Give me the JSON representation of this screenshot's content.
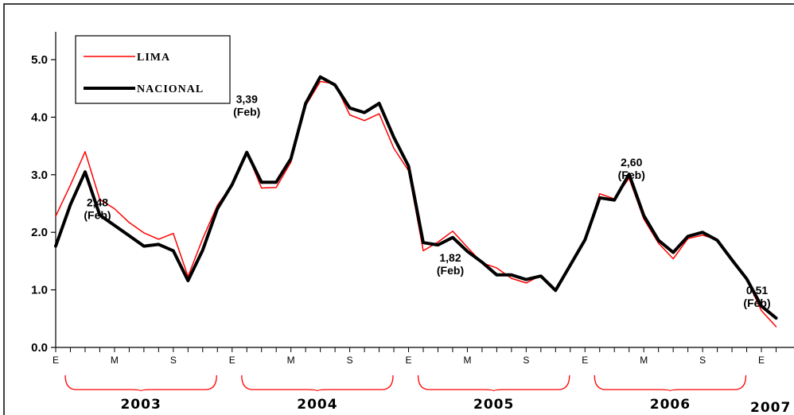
{
  "chart_data": {
    "type": "line",
    "title": "",
    "xlabel": "",
    "ylabel": "",
    "ylim": [
      0,
      5.5
    ],
    "yticks": [
      "0.0",
      "1.0",
      "2.0",
      "3.0",
      "4.0",
      "5.0"
    ],
    "grid": false,
    "legend_position": "top-left",
    "x_month_labels": [
      "E",
      "M",
      "S",
      "E",
      "M",
      "S",
      "E",
      "M",
      "S",
      "E",
      "M",
      "S",
      "E"
    ],
    "year_labels": [
      "2003",
      "2004",
      "2005",
      "2006",
      "2007"
    ],
    "x": [
      "2003-01",
      "2003-02",
      "2003-03",
      "2003-04",
      "2003-05",
      "2003-06",
      "2003-07",
      "2003-08",
      "2003-09",
      "2003-10",
      "2003-11",
      "2003-12",
      "2004-01",
      "2004-02",
      "2004-03",
      "2004-04",
      "2004-05",
      "2004-06",
      "2004-07",
      "2004-08",
      "2004-09",
      "2004-10",
      "2004-11",
      "2004-12",
      "2005-01",
      "2005-02",
      "2005-03",
      "2005-04",
      "2005-05",
      "2005-06",
      "2005-07",
      "2005-08",
      "2005-09",
      "2005-10",
      "2005-11",
      "2005-12",
      "2006-01",
      "2006-02",
      "2006-03",
      "2006-04",
      "2006-05",
      "2006-06",
      "2006-07",
      "2006-08",
      "2006-09",
      "2006-10",
      "2006-11",
      "2006-12",
      "2007-01",
      "2007-02"
    ],
    "series": [
      {
        "name": "LIMA",
        "color": "#ff0000",
        "values": [
          2.28,
          2.82,
          3.4,
          2.57,
          2.41,
          2.17,
          1.99,
          1.88,
          1.98,
          1.23,
          1.89,
          2.47,
          2.83,
          3.39,
          2.77,
          2.78,
          3.22,
          4.2,
          4.62,
          4.58,
          4.04,
          3.94,
          4.06,
          3.46,
          3.07,
          1.68,
          1.83,
          2.02,
          1.74,
          1.47,
          1.38,
          1.2,
          1.12,
          1.25,
          0.99,
          1.4,
          1.89,
          2.67,
          2.58,
          2.94,
          2.23,
          1.81,
          1.54,
          1.89,
          1.95,
          1.87,
          1.53,
          1.18,
          0.64,
          0.36
        ]
      },
      {
        "name": "NACIONAL",
        "color": "#000000",
        "values": [
          1.76,
          2.48,
          3.05,
          2.3,
          2.12,
          1.94,
          1.76,
          1.79,
          1.68,
          1.16,
          1.69,
          2.41,
          2.83,
          3.39,
          2.87,
          2.87,
          3.28,
          4.24,
          4.7,
          4.56,
          4.16,
          4.08,
          4.24,
          3.65,
          3.15,
          1.82,
          1.78,
          1.91,
          1.67,
          1.48,
          1.26,
          1.26,
          1.18,
          1.24,
          0.99,
          1.43,
          1.87,
          2.6,
          2.56,
          3.01,
          2.29,
          1.86,
          1.65,
          1.93,
          2.0,
          1.86,
          1.52,
          1.19,
          0.72,
          0.51
        ]
      }
    ],
    "annotations": [
      {
        "value": "2,48",
        "sub": "(Feb)",
        "index": 1
      },
      {
        "value": "3,39",
        "sub": "(Feb)",
        "index": 13
      },
      {
        "value": "1,82",
        "sub": "(Feb)",
        "index": 25
      },
      {
        "value": "2,60",
        "sub": "(Feb)",
        "index": 37
      },
      {
        "value": "0,51",
        "sub": "(Feb)",
        "index": 49
      }
    ]
  }
}
